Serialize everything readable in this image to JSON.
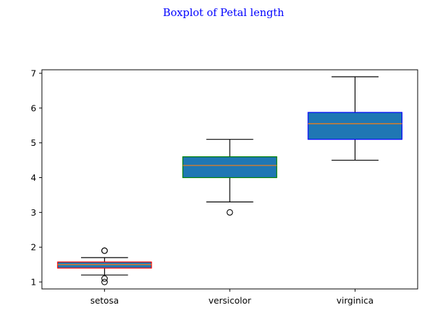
{
  "chart_data": {
    "type": "boxplot",
    "title": "Boxplot of Petal length",
    "title_color": "#0000ff",
    "xlabel": "",
    "ylabel": "",
    "categories": [
      "setosa",
      "versicolor",
      "virginica"
    ],
    "ylim": [
      0.8,
      7.1
    ],
    "yticks": [
      "1",
      "2",
      "3",
      "4",
      "5",
      "6",
      "7"
    ],
    "grid": false,
    "box_fill": "#1f77b4",
    "median_color": "#ff7f0e",
    "series": [
      {
        "whisker_low": 1.2,
        "q1": 1.4,
        "median": 1.5,
        "q3": 1.575,
        "whisker_high": 1.7,
        "outliers": [
          1.0,
          1.1,
          1.9,
          1.9
        ],
        "edge_color": "#ff0000"
      },
      {
        "whisker_low": 3.3,
        "q1": 4.0,
        "median": 4.35,
        "q3": 4.6,
        "whisker_high": 5.1,
        "outliers": [
          3.0
        ],
        "edge_color": "#008000"
      },
      {
        "whisker_low": 4.5,
        "q1": 5.1,
        "median": 5.55,
        "q3": 5.875,
        "whisker_high": 6.9,
        "outliers": [],
        "edge_color": "#0000ff"
      }
    ]
  }
}
